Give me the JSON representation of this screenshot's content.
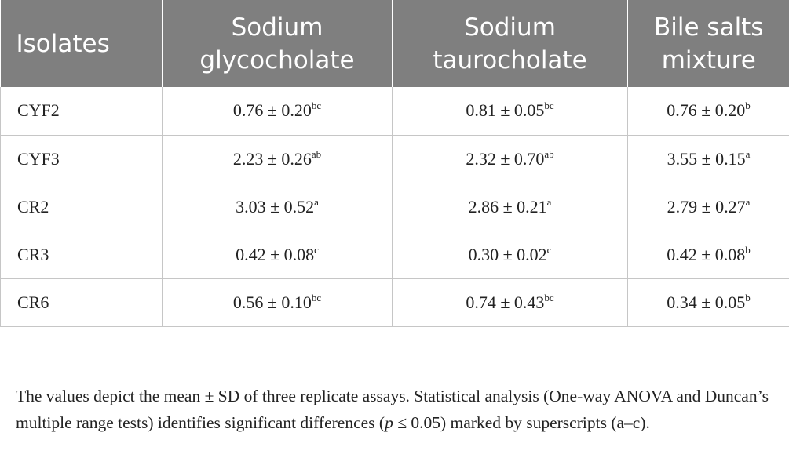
{
  "table": {
    "headers": [
      {
        "line1": "Isolates",
        "line2": ""
      },
      {
        "line1": "Sodium",
        "line2": "glycocholate"
      },
      {
        "line1": "Sodium",
        "line2": "taurocholate"
      },
      {
        "line1": "Bile salts",
        "line2": "mixture"
      }
    ],
    "rows": [
      {
        "isolate": "CYF2",
        "cells": [
          {
            "value": "0.76 ± 0.20",
            "sup": "bc"
          },
          {
            "value": "0.81 ± 0.05",
            "sup": "bc"
          },
          {
            "value": "0.76 ± 0.20",
            "sup": "b"
          }
        ]
      },
      {
        "isolate": "CYF3",
        "cells": [
          {
            "value": "2.23 ± 0.26",
            "sup": "ab"
          },
          {
            "value": "2.32 ± 0.70",
            "sup": "ab"
          },
          {
            "value": "3.55 ± 0.15",
            "sup": "a"
          }
        ]
      },
      {
        "isolate": "CR2",
        "cells": [
          {
            "value": "3.03 ± 0.52",
            "sup": "a"
          },
          {
            "value": "2.86 ± 0.21",
            "sup": "a"
          },
          {
            "value": "2.79 ± 0.27",
            "sup": "a"
          }
        ]
      },
      {
        "isolate": "CR3",
        "cells": [
          {
            "value": "0.42 ± 0.08",
            "sup": "c"
          },
          {
            "value": "0.30 ± 0.02",
            "sup": "c"
          },
          {
            "value": "0.42 ± 0.08",
            "sup": "b"
          }
        ]
      },
      {
        "isolate": "CR6",
        "cells": [
          {
            "value": "0.56 ± 0.10",
            "sup": "bc"
          },
          {
            "value": "0.74 ± 0.43",
            "sup": "bc"
          },
          {
            "value": "0.34 ± 0.05",
            "sup": "b"
          }
        ]
      }
    ]
  },
  "footnote": {
    "part1": "The values depict the mean ± SD of three replicate assays. Statistical analysis (One-way ANOVA and Duncan’s multiple range tests) identifies significant differences (",
    "p_symbol": "p",
    "part2": " ≤ 0.05) marked by superscripts (a–c)."
  },
  "colors": {
    "header_bg": "#7f7f7f",
    "header_text": "#ffffff",
    "grid": "#c6c6c6",
    "body_text": "#222222"
  }
}
